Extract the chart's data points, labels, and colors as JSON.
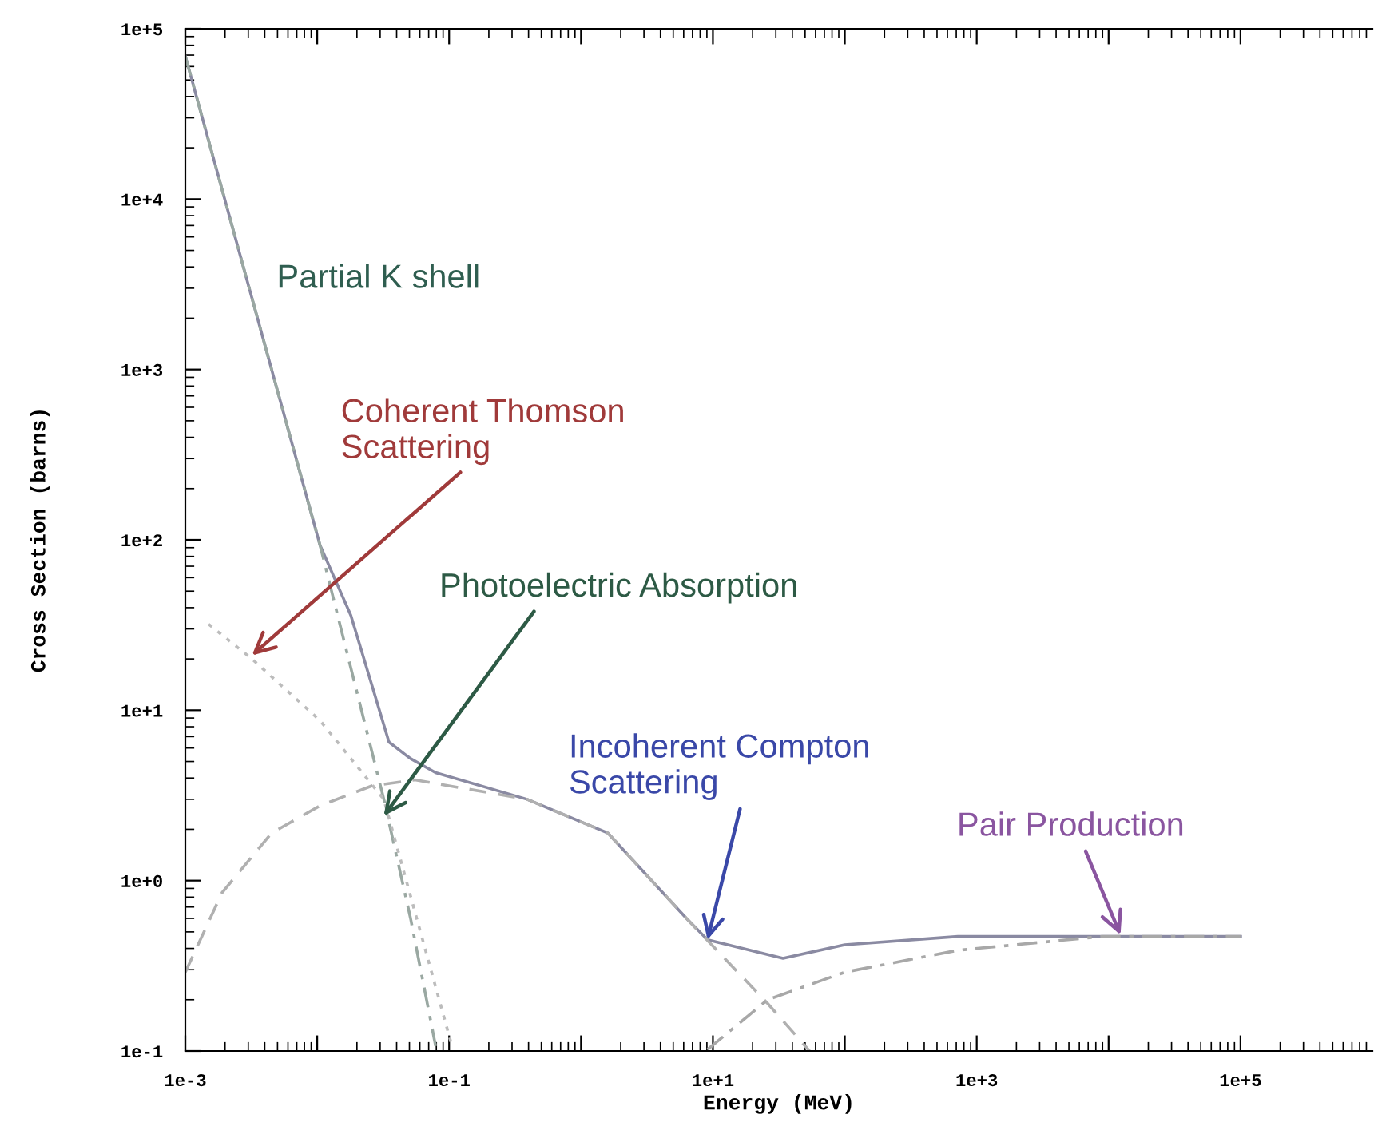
{
  "chart_data": {
    "type": "line",
    "xlabel": "Energy (MeV)",
    "ylabel": "Cross Section (barns)",
    "log": "xy",
    "grid": false,
    "marker": "none",
    "xlim": [
      0.001,
      1000000
    ],
    "ylim": [
      0.1,
      100000
    ],
    "xticks": [
      {
        "value": 0.001,
        "label": "1e-3"
      },
      {
        "value": 0.01,
        "label": null
      },
      {
        "value": 0.1,
        "label": "1e-1"
      },
      {
        "value": 1,
        "label": null
      },
      {
        "value": 10,
        "label": "1e+1"
      },
      {
        "value": 100,
        "label": null
      },
      {
        "value": 1000,
        "label": "1e+3"
      },
      {
        "value": 10000,
        "label": null
      },
      {
        "value": 100000,
        "label": "1e+5"
      }
    ],
    "yticks": [
      {
        "value": 0.1,
        "label": "1e-1"
      },
      {
        "value": 1,
        "label": "1e+0"
      },
      {
        "value": 10,
        "label": "1e+1"
      },
      {
        "value": 100,
        "label": "1e+2"
      },
      {
        "value": 1000,
        "label": "1e+3"
      },
      {
        "value": 10000,
        "label": "1e+4"
      },
      {
        "value": 100000,
        "label": "1e+5"
      }
    ],
    "series": [
      {
        "color": "#8a8aa2",
        "line_style": "solid",
        "x": [
          0.001,
          0.0105,
          0.018,
          0.026,
          0.035,
          0.051,
          0.079,
          0.39,
          1.6,
          6.3,
          9.1,
          34,
          100,
          720,
          8900,
          100000
        ],
        "values": [
          69000,
          93,
          36,
          14,
          6.5,
          5.2,
          4.3,
          3.0,
          1.9,
          0.6,
          0.45,
          0.35,
          0.42,
          0.47,
          0.47,
          0.47
        ]
      },
      {
        "color": "#9aa8a2",
        "line_style": "dashdot",
        "x": [
          0.001,
          0.0105,
          0.032,
          0.051,
          0.079
        ],
        "values": [
          69000,
          93,
          3.0,
          0.6,
          0.107
        ]
      },
      {
        "color": "#bcbcbc",
        "line_style": "dotted",
        "x": [
          0.0015,
          0.0032,
          0.0105,
          0.032,
          0.105
        ],
        "values": [
          32,
          20,
          8.7,
          3.0,
          0.107
        ]
      },
      {
        "color": "#b0b0b0",
        "line_style": "dashed",
        "x": [
          0.001,
          0.0019,
          0.0045,
          0.0105,
          0.026,
          0.055,
          0.39,
          1.6,
          6.3,
          26,
          54
        ],
        "values": [
          0.29,
          0.85,
          1.9,
          2.75,
          3.6,
          3.9,
          3.0,
          1.9,
          0.6,
          0.19,
          0.1
        ]
      },
      {
        "color": "#a8a8a8",
        "line_style": "dashdot",
        "x": [
          9.1,
          26,
          100,
          720,
          8900,
          100000
        ],
        "values": [
          0.102,
          0.2,
          0.29,
          0.39,
          0.47,
          0.47
        ]
      }
    ],
    "annotations": [
      "Partial K shell",
      {
        "text": "Coherent Thomson\nScattering",
        "x": 0.0032,
        "y": 21
      },
      {
        "text": "Photoelectric Absorption",
        "x": 0.032,
        "y": 2.4
      },
      {
        "text": "Incoherent Compton\nScattering",
        "x": 9.1,
        "y": 0.45
      },
      {
        "text": "Pair Production",
        "x": 12300,
        "y": 0.48
      }
    ]
  }
}
